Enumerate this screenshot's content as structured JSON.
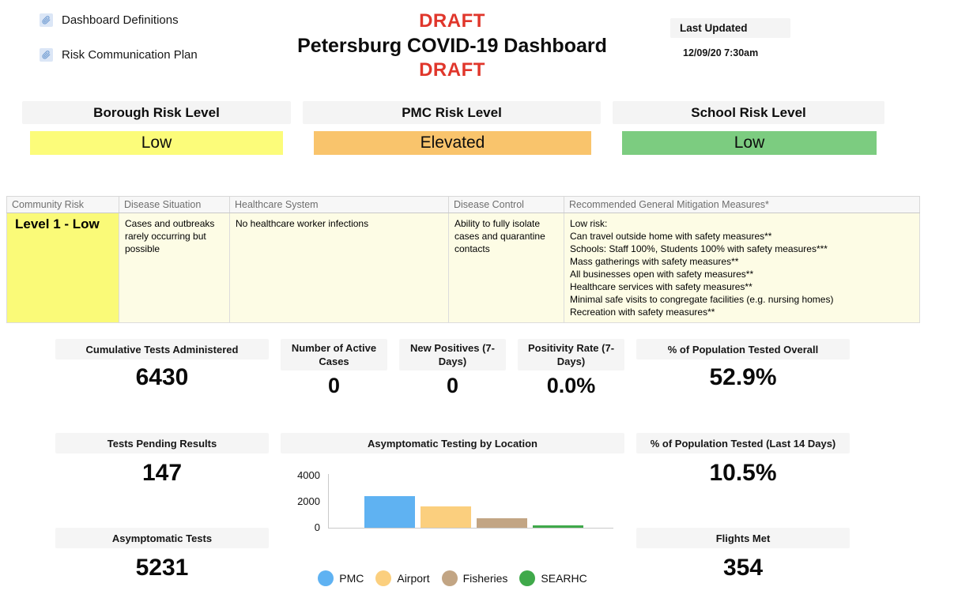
{
  "header": {
    "draft_top": "DRAFT",
    "title": "Petersburg COVID-19 Dashboard",
    "draft_bottom": "DRAFT",
    "draft_color": "#e0362b"
  },
  "links": [
    {
      "label": "Dashboard Definitions"
    },
    {
      "label": "Risk Communication Plan"
    }
  ],
  "last_updated": {
    "label": "Last Updated",
    "value": "12/09/20 7:30am"
  },
  "risk_levels": [
    {
      "label": "Borough Risk Level",
      "value": "Low",
      "color": "#fcfc7a"
    },
    {
      "label": "PMC Risk Level",
      "value": "Elevated",
      "color": "#f9c46c"
    },
    {
      "label": "School Risk Level",
      "value": "Low",
      "color": "#7ccc80"
    }
  ],
  "risk_table": {
    "headers": [
      "Community Risk",
      "Disease Situation",
      "Healthcare System",
      "Disease Control",
      "Recommended General Mitigation Measures*"
    ],
    "row": {
      "community_risk": "Level 1 - Low",
      "disease_situation": "Cases and outbreaks rarely occurring but possible",
      "healthcare_system": "No healthcare worker infections",
      "disease_control": "Ability to fully isolate cases and quarantine contacts",
      "mitigation_measures": [
        "Low risk:",
        "Can travel outside home with safety measures**",
        "Schools: Staff 100%, Students 100% with safety measures***",
        "Mass gatherings with safety measures**",
        "All businesses open with safety measures**",
        "Healthcare services with safety measures**",
        "Minimal safe visits to congregate facilities (e.g. nursing homes)",
        "Recreation with safety measures**"
      ]
    }
  },
  "stats": {
    "cumulative": {
      "label": "Cumulative Tests Administered",
      "value": "6430"
    },
    "active": {
      "label": "Number of Active Cases",
      "value": "0"
    },
    "new_positives": {
      "label": "New Positives  (7-Days)",
      "value": "0"
    },
    "positivity": {
      "label": "Positivity Rate  (7-Days)",
      "value": "0.0%"
    },
    "tested_overall": {
      "label": "% of Population Tested Overall",
      "value": "52.9%"
    },
    "pending": {
      "label": "Tests Pending Results",
      "value": "147"
    },
    "tested_14d": {
      "label": "% of Population Tested (Last 14 Days)",
      "value": "10.5%"
    },
    "asymptomatic": {
      "label": "Asymptomatic Tests",
      "value": "5231"
    },
    "flights": {
      "label": "Flights Met",
      "value": "354"
    }
  },
  "chart_data": {
    "type": "bar",
    "title": "Asymptomatic Testing by Location",
    "categories": [
      "PMC",
      "Airport",
      "Fisheries",
      "SEARHC"
    ],
    "values": [
      2400,
      1650,
      720,
      200
    ],
    "colors": [
      "#5fb2f2",
      "#fbcf7e",
      "#c2a584",
      "#3fa94a"
    ],
    "xlabel": "",
    "ylabel": "",
    "yticks": [
      0,
      2000,
      4000
    ],
    "ylim": [
      0,
      4000
    ],
    "grid": false,
    "legend_position": "bottom"
  }
}
